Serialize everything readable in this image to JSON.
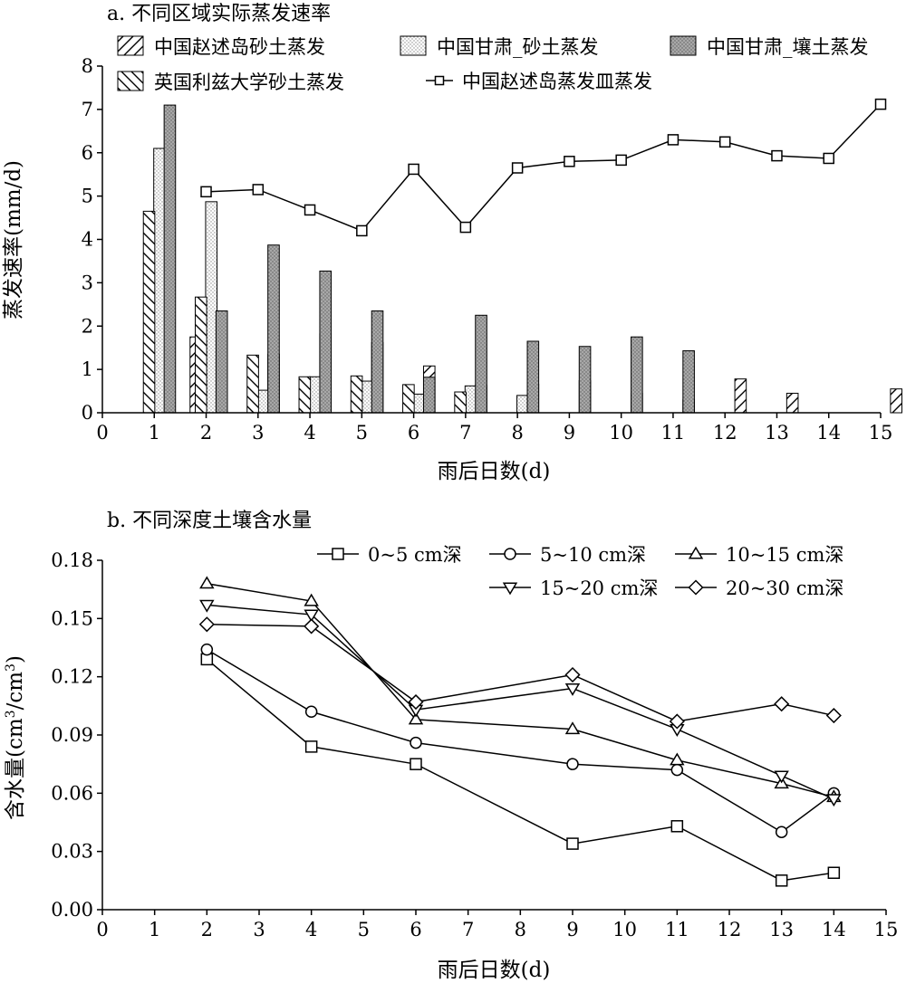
{
  "chart_data": [
    {
      "type": "bar",
      "title": "a. 不同区域实际蒸发速率",
      "xlabel": "雨后日数(d)",
      "ylabel": "蒸发速率(mm/d)",
      "xlim": [
        0,
        15
      ],
      "ylim": [
        0,
        8
      ],
      "xticks": [
        "0",
        "1",
        "2",
        "3",
        "4",
        "5",
        "6",
        "7",
        "8",
        "9",
        "10",
        "11",
        "12",
        "13",
        "14",
        "15"
      ],
      "yticks": [
        "0",
        "1",
        "2",
        "3",
        "4",
        "5",
        "6",
        "7",
        "8"
      ],
      "legend_position": "top",
      "series": [
        {
          "name": "中国赵述岛砂土蒸发",
          "pattern": "diagonal-forward",
          "x": [
            1.8,
            3.3,
            4.3,
            5.3,
            6.3,
            7.3,
            8.3,
            9.3,
            10.3,
            11.3,
            12.3,
            13.3,
            14.3,
            15.3
          ],
          "values": [
            1.75,
            1.35,
            1.82,
            1.62,
            1.08,
            0.63,
            0.66,
            0.74,
            0.45,
            0.3,
            0.78,
            0.45,
            0,
            0.55
          ]
        },
        {
          "name": "中国甘肃_砂土蒸发",
          "pattern": "dotted",
          "x": [
            1.1,
            2.1,
            3.1,
            4.1,
            5.1,
            6.1,
            7.1,
            8.1
          ],
          "values": [
            6.1,
            4.87,
            0.52,
            0.83,
            0.73,
            0.43,
            0.62,
            0.4
          ]
        },
        {
          "name": "中国甘肃_壤土蒸发",
          "pattern": "gray-dotted",
          "x": [
            1.3,
            2.3,
            3.3,
            4.3,
            5.3,
            6.3,
            7.3,
            8.3,
            9.3,
            10.3,
            11.3
          ],
          "values": [
            7.1,
            2.35,
            3.87,
            3.27,
            2.35,
            0.82,
            2.25,
            1.65,
            1.53,
            1.75,
            1.43
          ]
        },
        {
          "name": "英国利兹大学砂土蒸发",
          "pattern": "diagonal-back",
          "x": [
            0.9,
            1.9,
            2.9,
            3.9,
            4.9,
            5.9,
            6.9
          ],
          "values": [
            4.65,
            2.67,
            1.33,
            0.83,
            0.85,
            0.65,
            0.48
          ]
        }
      ],
      "line_series": [
        {
          "name": "中国赵述岛蒸发皿蒸发",
          "marker": "square",
          "x": [
            2,
            3,
            4,
            5,
            6,
            7,
            8,
            9,
            10,
            11,
            12,
            13,
            14,
            15
          ],
          "values": [
            5.1,
            5.15,
            4.68,
            4.2,
            5.62,
            4.28,
            5.65,
            5.8,
            5.83,
            6.3,
            6.25,
            5.93,
            5.87,
            7.12
          ]
        }
      ]
    },
    {
      "type": "line",
      "title": "b. 不同深度土壤含水量",
      "xlabel": "雨后日数(d)",
      "ylabel_main": "含水量(cm",
      "ylabel_sup1": "3",
      "ylabel_mid": "/cm",
      "ylabel_sup2": "3",
      "ylabel_end": ")",
      "xlim": [
        0,
        15
      ],
      "ylim": [
        0,
        0.18
      ],
      "xticks": [
        "0",
        "1",
        "2",
        "3",
        "4",
        "5",
        "6",
        "7",
        "8",
        "9",
        "10",
        "11",
        "12",
        "13",
        "14",
        "15"
      ],
      "yticks": [
        "0.00",
        "0.03",
        "0.06",
        "0.09",
        "0.12",
        "0.15",
        "0.18"
      ],
      "legend_position": "top-right",
      "series": [
        {
          "name": "0~5 cm深",
          "marker": "square",
          "x": [
            2,
            4,
            6,
            9,
            11,
            13,
            14
          ],
          "values": [
            0.129,
            0.084,
            0.075,
            0.034,
            0.043,
            0.015,
            0.019
          ]
        },
        {
          "name": "5~10 cm深",
          "marker": "circle",
          "x": [
            2,
            4,
            6,
            9,
            11,
            13,
            14
          ],
          "values": [
            0.134,
            0.102,
            0.086,
            0.075,
            0.072,
            0.04,
            0.06
          ]
        },
        {
          "name": "10~15 cm深",
          "marker": "triangle-up",
          "x": [
            2,
            4,
            6,
            9,
            11,
            13,
            14
          ],
          "values": [
            0.168,
            0.159,
            0.098,
            0.093,
            0.077,
            0.065,
            0.058
          ]
        },
        {
          "name": "15~20 cm深",
          "marker": "triangle-down",
          "x": [
            2,
            4,
            6,
            9,
            11,
            13,
            14
          ],
          "values": [
            0.157,
            0.152,
            0.103,
            0.114,
            0.093,
            0.069,
            0.057
          ]
        },
        {
          "name": "20~30 cm深",
          "marker": "diamond",
          "x": [
            2,
            4,
            6,
            9,
            11,
            13,
            14
          ],
          "values": [
            0.147,
            0.146,
            0.107,
            0.121,
            0.097,
            0.106,
            0.1
          ]
        }
      ]
    }
  ]
}
